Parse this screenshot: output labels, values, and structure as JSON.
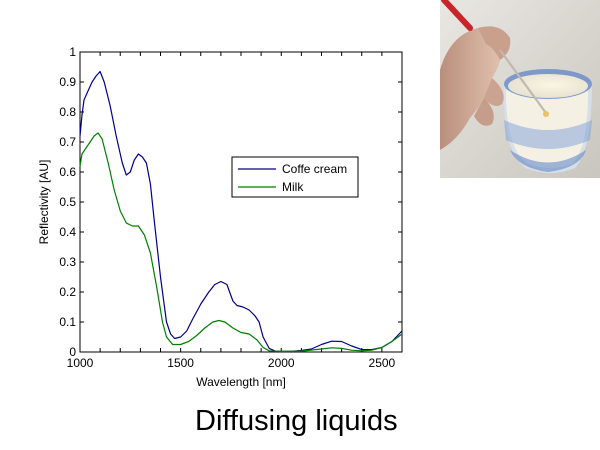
{
  "slide": {
    "title": "Diffusing liquids"
  },
  "photo": {
    "subject": "hand dipping a probe into a glass of milk"
  },
  "chart_data": {
    "type": "line",
    "title": "",
    "xlabel": "Wavelength [nm]",
    "ylabel": "Reflectivity [AU]",
    "xlim": [
      1000,
      2600
    ],
    "ylim": [
      0,
      1
    ],
    "xticks": [
      "1000",
      "1500",
      "2000",
      "2500"
    ],
    "yticks": [
      "0",
      "0.1",
      "0.2",
      "0.3",
      "0.4",
      "0.5",
      "0.6",
      "0.7",
      "0.8",
      "0.9",
      "1"
    ],
    "legend_position": "center-right",
    "grid": false,
    "series": [
      {
        "name": "Coffe cream",
        "color": "#00008b",
        "points": [
          [
            1000,
            0.72
          ],
          [
            1010,
            0.79
          ],
          [
            1020,
            0.84
          ],
          [
            1040,
            0.87
          ],
          [
            1060,
            0.9
          ],
          [
            1080,
            0.92
          ],
          [
            1100,
            0.935
          ],
          [
            1120,
            0.9
          ],
          [
            1150,
            0.82
          ],
          [
            1180,
            0.72
          ],
          [
            1210,
            0.63
          ],
          [
            1230,
            0.59
          ],
          [
            1250,
            0.6
          ],
          [
            1270,
            0.64
          ],
          [
            1290,
            0.66
          ],
          [
            1310,
            0.65
          ],
          [
            1330,
            0.63
          ],
          [
            1350,
            0.56
          ],
          [
            1370,
            0.43
          ],
          [
            1400,
            0.25
          ],
          [
            1430,
            0.1
          ],
          [
            1450,
            0.06
          ],
          [
            1470,
            0.045
          ],
          [
            1500,
            0.05
          ],
          [
            1530,
            0.07
          ],
          [
            1560,
            0.11
          ],
          [
            1600,
            0.16
          ],
          [
            1640,
            0.2
          ],
          [
            1670,
            0.225
          ],
          [
            1700,
            0.235
          ],
          [
            1730,
            0.225
          ],
          [
            1760,
            0.17
          ],
          [
            1780,
            0.155
          ],
          [
            1810,
            0.15
          ],
          [
            1840,
            0.14
          ],
          [
            1870,
            0.12
          ],
          [
            1890,
            0.1
          ],
          [
            1910,
            0.05
          ],
          [
            1940,
            0.012
          ],
          [
            1970,
            0.003
          ],
          [
            2000,
            0.002
          ],
          [
            2050,
            0.002
          ],
          [
            2100,
            0.005
          ],
          [
            2150,
            0.01
          ],
          [
            2200,
            0.025
          ],
          [
            2250,
            0.036
          ],
          [
            2300,
            0.035
          ],
          [
            2350,
            0.02
          ],
          [
            2400,
            0.008
          ],
          [
            2450,
            0.008
          ],
          [
            2500,
            0.015
          ],
          [
            2550,
            0.035
          ],
          [
            2600,
            0.07
          ]
        ]
      },
      {
        "name": "Milk",
        "color": "#007f00",
        "points": [
          [
            1000,
            0.62
          ],
          [
            1010,
            0.66
          ],
          [
            1030,
            0.68
          ],
          [
            1050,
            0.7
          ],
          [
            1070,
            0.72
          ],
          [
            1090,
            0.73
          ],
          [
            1110,
            0.71
          ],
          [
            1140,
            0.63
          ],
          [
            1170,
            0.54
          ],
          [
            1200,
            0.47
          ],
          [
            1230,
            0.43
          ],
          [
            1260,
            0.42
          ],
          [
            1290,
            0.42
          ],
          [
            1320,
            0.39
          ],
          [
            1350,
            0.33
          ],
          [
            1380,
            0.22
          ],
          [
            1410,
            0.1
          ],
          [
            1430,
            0.05
          ],
          [
            1460,
            0.025
          ],
          [
            1500,
            0.025
          ],
          [
            1540,
            0.035
          ],
          [
            1580,
            0.055
          ],
          [
            1620,
            0.08
          ],
          [
            1660,
            0.1
          ],
          [
            1690,
            0.105
          ],
          [
            1720,
            0.1
          ],
          [
            1760,
            0.08
          ],
          [
            1800,
            0.065
          ],
          [
            1840,
            0.06
          ],
          [
            1880,
            0.04
          ],
          [
            1910,
            0.015
          ],
          [
            1940,
            0.004
          ],
          [
            2000,
            0.002
          ],
          [
            2100,
            0.003
          ],
          [
            2200,
            0.01
          ],
          [
            2250,
            0.014
          ],
          [
            2300,
            0.012
          ],
          [
            2350,
            0.006
          ],
          [
            2400,
            0.004
          ],
          [
            2450,
            0.006
          ],
          [
            2500,
            0.015
          ],
          [
            2550,
            0.035
          ],
          [
            2600,
            0.06
          ]
        ]
      }
    ]
  }
}
